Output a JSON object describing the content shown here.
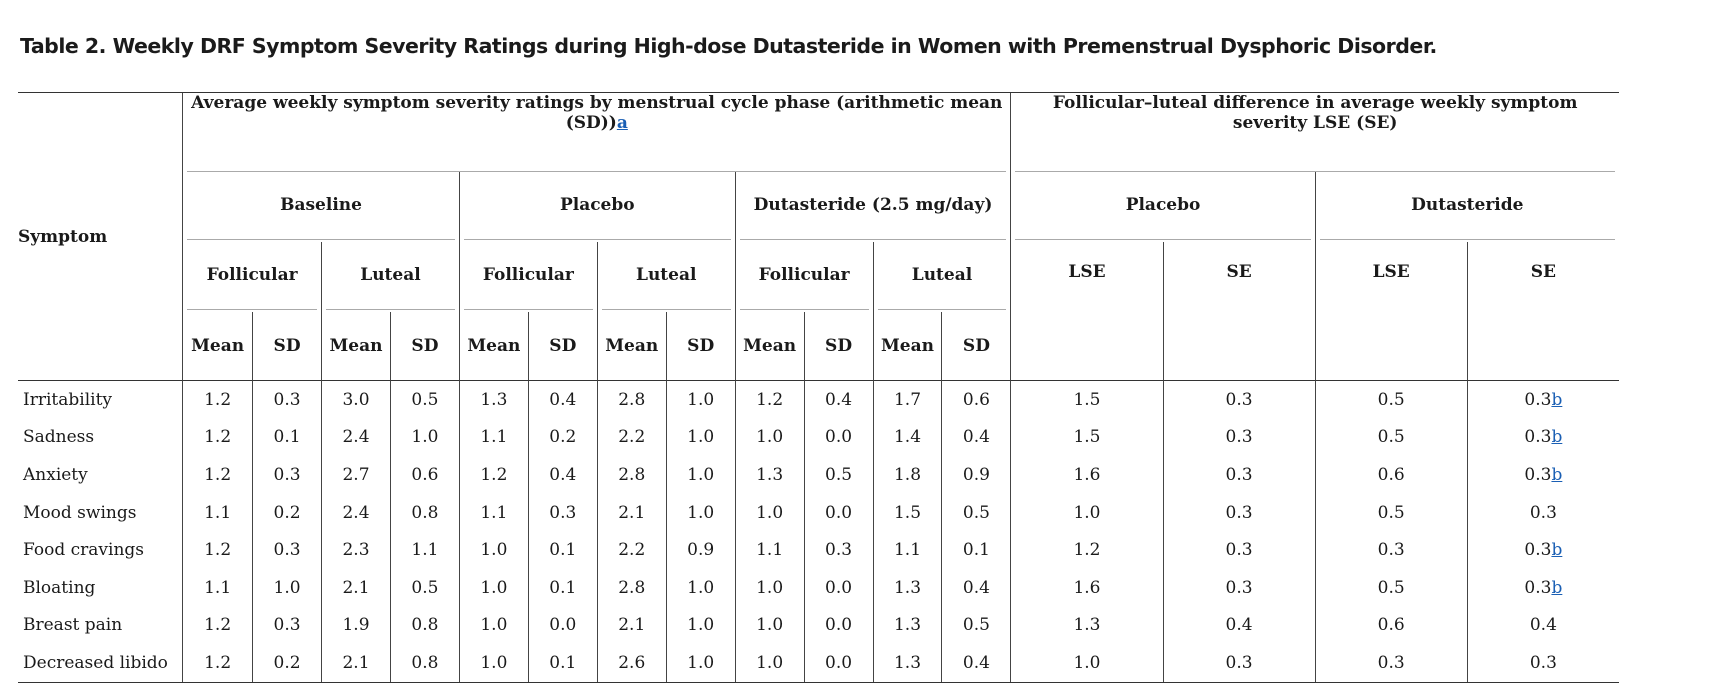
{
  "title": "Table 2. Weekly DRF Symptom Severity Ratings during High-dose Dutasteride in Women with Premenstrual Dysphoric Disorder.",
  "headers": {
    "symptom": "Symptom",
    "avg_group": "Average weekly symptom severity ratings by menstrual cycle phase (arithmetic mean (SD))",
    "avg_group_footnote": "a",
    "diff_group": "Follicular–luteal difference in average weekly symptom severity LSE (SE)",
    "baseline": "Baseline",
    "placebo": "Placebo",
    "dutasteride_dose": "Dutasteride (2.5 mg/day)",
    "placebo_diff": "Placebo",
    "dutasteride_diff": "Dutasteride",
    "follicular": "Follicular",
    "luteal": "Luteal",
    "lse": "LSE",
    "se": "SE",
    "mean": "Mean",
    "sd": "SD"
  },
  "rows": [
    {
      "symptom": "Irritability",
      "values": [
        "1.2",
        "0.3",
        "3.0",
        "0.5",
        "1.3",
        "0.4",
        "2.8",
        "1.0",
        "1.2",
        "0.4",
        "1.7",
        "0.6",
        "1.5",
        "0.3",
        "0.5",
        "0.3"
      ],
      "footnote": "b"
    },
    {
      "symptom": "Sadness",
      "values": [
        "1.2",
        "0.1",
        "2.4",
        "1.0",
        "1.1",
        "0.2",
        "2.2",
        "1.0",
        "1.0",
        "0.0",
        "1.4",
        "0.4",
        "1.5",
        "0.3",
        "0.5",
        "0.3"
      ],
      "footnote": "b"
    },
    {
      "symptom": "Anxiety",
      "values": [
        "1.2",
        "0.3",
        "2.7",
        "0.6",
        "1.2",
        "0.4",
        "2.8",
        "1.0",
        "1.3",
        "0.5",
        "1.8",
        "0.9",
        "1.6",
        "0.3",
        "0.6",
        "0.3"
      ],
      "footnote": "b"
    },
    {
      "symptom": "Mood swings",
      "values": [
        "1.1",
        "0.2",
        "2.4",
        "0.8",
        "1.1",
        "0.3",
        "2.1",
        "1.0",
        "1.0",
        "0.0",
        "1.5",
        "0.5",
        "1.0",
        "0.3",
        "0.5",
        "0.3"
      ],
      "footnote": ""
    },
    {
      "symptom": "Food cravings",
      "values": [
        "1.2",
        "0.3",
        "2.3",
        "1.1",
        "1.0",
        "0.1",
        "2.2",
        "0.9",
        "1.1",
        "0.3",
        "1.1",
        "0.1",
        "1.2",
        "0.3",
        "0.3",
        "0.3"
      ],
      "footnote": "b"
    },
    {
      "symptom": "Bloating",
      "values": [
        "1.1",
        "1.0",
        "2.1",
        "0.5",
        "1.0",
        "0.1",
        "2.8",
        "1.0",
        "1.0",
        "0.0",
        "1.3",
        "0.4",
        "1.6",
        "0.3",
        "0.5",
        "0.3"
      ],
      "footnote": "b"
    },
    {
      "symptom": "Breast pain",
      "values": [
        "1.2",
        "0.3",
        "1.9",
        "0.8",
        "1.0",
        "0.0",
        "2.1",
        "1.0",
        "1.0",
        "0.0",
        "1.3",
        "0.5",
        "1.3",
        "0.4",
        "0.6",
        "0.4"
      ],
      "footnote": ""
    },
    {
      "symptom": "Decreased libido",
      "values": [
        "1.2",
        "0.2",
        "2.1",
        "0.8",
        "1.0",
        "0.1",
        "2.6",
        "1.0",
        "1.0",
        "0.0",
        "1.3",
        "0.4",
        "1.0",
        "0.3",
        "0.3",
        "0.3"
      ],
      "footnote": ""
    }
  ]
}
